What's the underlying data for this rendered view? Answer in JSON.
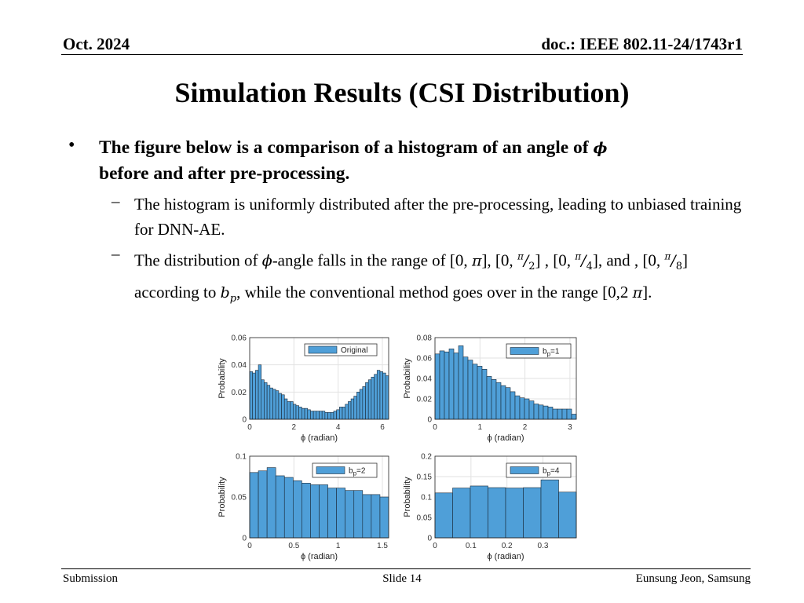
{
  "header": {
    "date": "Oct. 2024",
    "doc": "doc.: IEEE 802.11-24/1743r1"
  },
  "title": "Simulation Results (CSI Distribution)",
  "bullet": {
    "marker": "•",
    "line1": "The figure below is a comparison of a histogram of an angle of",
    "phi": "ϕ",
    "line2": "before and after pre-processing."
  },
  "sub1": {
    "marker": "–",
    "text": "The histogram is uniformly distributed after the pre-processing, leading to unbiased training for DNN-AE."
  },
  "sub2": {
    "marker": "–",
    "t1": "The distribution of",
    "phi": "ϕ",
    "t2": "-angle falls in the range of [0,",
    "pi": "π",
    "t3": "], [0,",
    "frac_num": "π",
    "frac_den2": "2",
    "t4": "] , [0,",
    "frac_den4": "4",
    "t5": "], and , [0,",
    "frac_den8": "8",
    "t6": "] according to",
    "bp_b": "b",
    "bp_p": "p",
    "t7": ", while the conventional method goes over in the range [0,2",
    "t8": "]."
  },
  "chart_data": [
    {
      "type": "bar",
      "legend": "Original",
      "ylabel": "Probability",
      "xlabel": "ϕ (radian)",
      "xlim": [
        0,
        6.283
      ],
      "ylim": [
        0,
        0.06
      ],
      "xticks": [
        "0",
        "2",
        "4",
        "6"
      ],
      "yticks": [
        "0",
        "0.02",
        "0.04",
        "0.06"
      ],
      "values": [
        0.035,
        0.034,
        0.036,
        0.04,
        0.029,
        0.027,
        0.025,
        0.023,
        0.022,
        0.021,
        0.019,
        0.018,
        0.015,
        0.013,
        0.013,
        0.011,
        0.01,
        0.009,
        0.008,
        0.008,
        0.007,
        0.006,
        0.006,
        0.006,
        0.006,
        0.006,
        0.005,
        0.005,
        0.005,
        0.006,
        0.007,
        0.009,
        0.009,
        0.011,
        0.013,
        0.015,
        0.017,
        0.02,
        0.022,
        0.024,
        0.027,
        0.029,
        0.031,
        0.033,
        0.036,
        0.035,
        0.034,
        0.032
      ]
    },
    {
      "type": "bar",
      "legend_b": "b",
      "legend_sub": "p",
      "legend_val": "=1",
      "ylabel": "Probability",
      "xlabel": "ϕ (radian)",
      "xlim": [
        0,
        3.1416
      ],
      "ylim": [
        0,
        0.08
      ],
      "xticks": [
        "0",
        "1",
        "2",
        "3"
      ],
      "yticks": [
        "0",
        "0.02",
        "0.04",
        "0.06",
        "0.08"
      ],
      "values": [
        0.064,
        0.067,
        0.066,
        0.069,
        0.065,
        0.072,
        0.061,
        0.058,
        0.054,
        0.052,
        0.049,
        0.042,
        0.039,
        0.036,
        0.033,
        0.031,
        0.027,
        0.023,
        0.021,
        0.02,
        0.018,
        0.015,
        0.014,
        0.013,
        0.012,
        0.01,
        0.01,
        0.01,
        0.01,
        0.005
      ]
    },
    {
      "type": "bar",
      "legend_b": "b",
      "legend_sub": "p",
      "legend_val": "=2",
      "ylabel": "Probability",
      "xlabel": "ϕ (radian)",
      "xlim": [
        0,
        1.5708
      ],
      "ylim": [
        0,
        0.1
      ],
      "xticks": [
        "0",
        "0.5",
        "1",
        "1.5"
      ],
      "yticks": [
        "0",
        "0.05",
        "0.1"
      ],
      "values": [
        0.08,
        0.082,
        0.086,
        0.076,
        0.074,
        0.07,
        0.067,
        0.065,
        0.065,
        0.061,
        0.061,
        0.058,
        0.058,
        0.053,
        0.053,
        0.05
      ]
    },
    {
      "type": "bar",
      "legend_b": "b",
      "legend_sub": "p",
      "legend_val": "=4",
      "ylabel": "Probability",
      "xlabel": "ϕ (radian)",
      "xlim": [
        0,
        0.3927
      ],
      "ylim": [
        0,
        0.2
      ],
      "xticks": [
        "0",
        "0.1",
        "0.2",
        "0.3"
      ],
      "yticks": [
        "0",
        "0.05",
        "0.1",
        "0.15",
        "0.2"
      ],
      "values": [
        0.11,
        0.122,
        0.127,
        0.123,
        0.122,
        0.123,
        0.142,
        0.112
      ]
    }
  ],
  "colors": {
    "bar_fill": "#4f9fd8",
    "bar_edge": "#1a2a3a",
    "grid": "#e2e2e2"
  },
  "footer": {
    "left": "Submission",
    "center": "Slide 14",
    "right": "Eunsung Jeon, Samsung"
  }
}
